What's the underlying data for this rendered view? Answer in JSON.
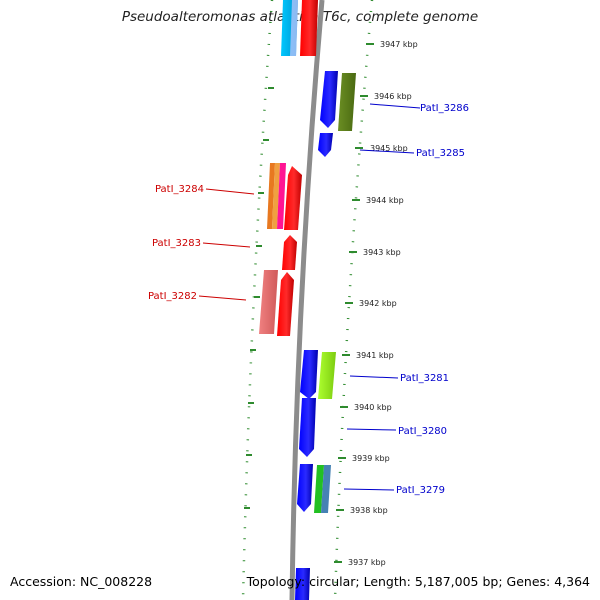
{
  "title": "Pseudoalteromonas atlantica T6c, complete genome",
  "accession": "Accession: NC_008228",
  "topology": "Topology: circular; Length: 5,187,005 bp; Genes: 4,364",
  "ticks": [
    "3947 kbp",
    "3946 kbp",
    "3945 kbp",
    "3944 kbp",
    "3943 kbp",
    "3942 kbp",
    "3941 kbp",
    "3940 kbp",
    "3939 kbp",
    "3938 kbp",
    "3937 kbp"
  ],
  "gene_labels": {
    "patl_3286": "PatI_3286",
    "patl_3285": "PatI_3285",
    "patl_3284": "PatI_3284",
    "patl_3283": "PatI_3283",
    "patl_3282": "PatI_3282",
    "patl_3281": "PatI_3281",
    "patl_3280": "PatI_3280",
    "patl_3279": "PatI_3279"
  },
  "colors": {
    "forward_label": "#0000cc",
    "reverse_label": "#cc0000",
    "backbone": "#8c8c8c",
    "dotted_track": "#2e8b2e",
    "tick_text": "#222222"
  }
}
